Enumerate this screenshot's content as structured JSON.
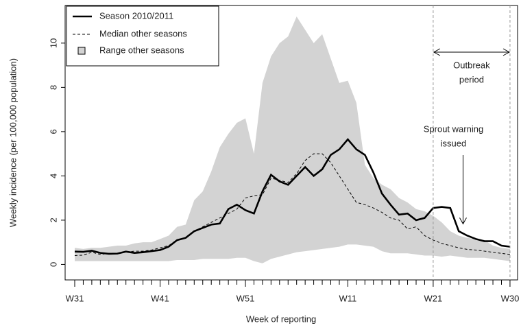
{
  "chart_data": {
    "type": "line",
    "xlabel": "Week of reporting",
    "ylabel": "Weekly incidence (per 100,000 population)",
    "categories": [
      "W31",
      null,
      null,
      null,
      null,
      null,
      null,
      null,
      null,
      null,
      "W41",
      null,
      null,
      null,
      null,
      null,
      null,
      null,
      null,
      null,
      "W51",
      null,
      null,
      null,
      null,
      null,
      null,
      null,
      null,
      null,
      null,
      null,
      "W11",
      null,
      null,
      null,
      null,
      null,
      null,
      null,
      null,
      null,
      "W21",
      null,
      null,
      null,
      null,
      null,
      null,
      null,
      null,
      "W30"
    ],
    "series": [
      {
        "name": "Season 2010/2011",
        "color": "#000000",
        "style": "solid",
        "values": [
          0.58,
          0.57,
          0.62,
          0.52,
          0.48,
          0.49,
          0.58,
          0.52,
          0.55,
          0.6,
          0.65,
          0.8,
          1.1,
          1.2,
          1.5,
          1.65,
          1.8,
          1.85,
          2.5,
          2.7,
          2.45,
          2.3,
          3.3,
          4.05,
          3.75,
          3.6,
          4.0,
          4.4,
          4.0,
          4.3,
          4.95,
          5.2,
          5.65,
          5.2,
          4.95,
          4.15,
          3.2,
          2.7,
          2.25,
          2.3,
          2.0,
          2.1,
          2.55,
          2.6,
          2.55,
          1.5,
          1.3,
          1.15,
          1.05,
          1.05,
          0.85,
          0.8
        ]
      },
      {
        "name": "Median other seasons",
        "color": "#000000",
        "style": "dashed",
        "values": [
          0.4,
          0.42,
          0.55,
          0.45,
          0.5,
          0.5,
          0.55,
          0.6,
          0.6,
          0.65,
          0.75,
          0.85,
          1.1,
          1.2,
          1.5,
          1.7,
          1.9,
          2.1,
          2.3,
          2.5,
          3.0,
          3.1,
          3.15,
          3.9,
          3.8,
          3.7,
          4.1,
          4.7,
          5.0,
          5.0,
          4.6,
          4.0,
          3.4,
          2.8,
          2.7,
          2.55,
          2.35,
          2.1,
          2.0,
          1.6,
          1.7,
          1.3,
          1.1,
          0.95,
          0.85,
          0.75,
          0.68,
          0.65,
          0.6,
          0.55,
          0.5,
          0.45
        ]
      },
      {
        "name": "Range other seasons",
        "color": "#d3d3d3",
        "style": "band",
        "low": [
          0.15,
          0.15,
          0.15,
          0.15,
          0.15,
          0.15,
          0.15,
          0.15,
          0.15,
          0.15,
          0.15,
          0.15,
          0.2,
          0.2,
          0.2,
          0.25,
          0.25,
          0.25,
          0.25,
          0.3,
          0.3,
          0.15,
          0.05,
          0.25,
          0.35,
          0.45,
          0.55,
          0.6,
          0.65,
          0.7,
          0.75,
          0.8,
          0.9,
          0.9,
          0.85,
          0.8,
          0.6,
          0.5,
          0.5,
          0.5,
          0.45,
          0.4,
          0.4,
          0.35,
          0.4,
          0.35,
          0.3,
          0.3,
          0.3,
          0.25,
          0.2,
          0.15
        ],
        "high": [
          0.75,
          0.7,
          0.75,
          0.75,
          0.8,
          0.85,
          0.85,
          0.95,
          1.0,
          1.0,
          1.15,
          1.3,
          1.7,
          1.8,
          2.9,
          3.3,
          4.2,
          5.3,
          5.9,
          6.4,
          6.6,
          5.0,
          8.2,
          9.4,
          10.0,
          10.3,
          11.2,
          10.6,
          10.0,
          10.4,
          9.3,
          8.2,
          8.3,
          7.3,
          4.5,
          3.9,
          3.6,
          3.4,
          3.0,
          2.8,
          2.5,
          2.4,
          2.2,
          1.9,
          1.5,
          1.3,
          1.2,
          1.15,
          1.1,
          0.85,
          0.75,
          0.7
        ]
      }
    ],
    "ylim": [
      -0.7,
      11.7
    ],
    "yticks": [
      0,
      2,
      4,
      6,
      8,
      10
    ],
    "legend": "top-left",
    "outbreak_period": {
      "start": 42,
      "end": 51,
      "label": [
        "Outbreak",
        "period"
      ]
    },
    "sprout_warning": {
      "x": 45.5,
      "y": 1.8,
      "label": [
        "Sprout warning",
        "issued"
      ]
    }
  }
}
